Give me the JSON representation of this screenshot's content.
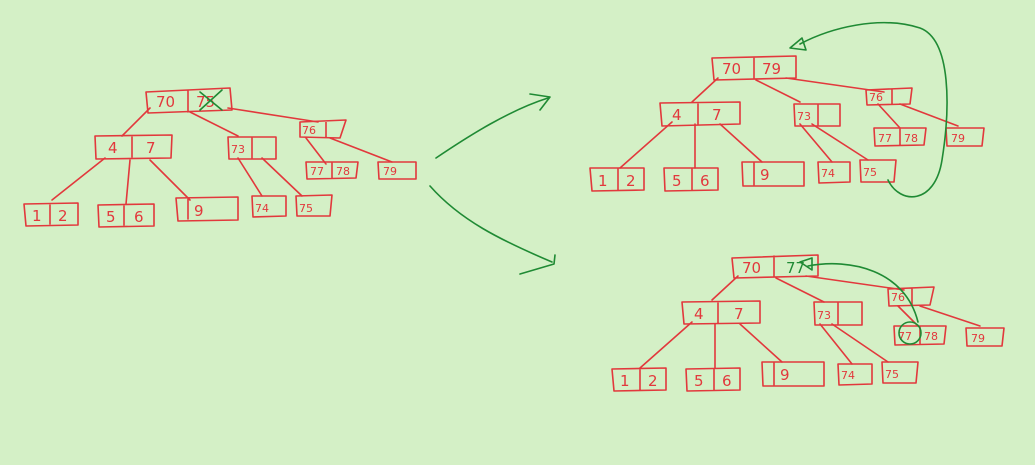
{
  "colors": {
    "background": "#d4f0c6",
    "ink_red": "#e2383c",
    "ink_green": "#1f8a34"
  },
  "trees": {
    "left": {
      "root": [
        "70",
        "75"
      ],
      "level1": [
        [
          "4",
          "7"
        ],
        [
          "73"
        ],
        [
          "76"
        ]
      ],
      "level2": [
        [
          "1",
          "2"
        ],
        [
          "5",
          "6"
        ],
        [
          "9"
        ],
        [
          "74"
        ],
        [
          "75"
        ],
        [
          "77",
          "78"
        ],
        [
          "79"
        ]
      ]
    },
    "top_right": {
      "root": [
        "70",
        "79"
      ],
      "level1": [
        [
          "4",
          "7"
        ],
        [
          "73"
        ],
        [
          "76"
        ]
      ],
      "level2": [
        [
          "1",
          "2"
        ],
        [
          "5",
          "6"
        ],
        [
          "9"
        ],
        [
          "74"
        ],
        [
          "75"
        ],
        [
          "77",
          "78"
        ],
        [
          "79"
        ]
      ]
    },
    "bottom_right": {
      "root": [
        "70",
        "77"
      ],
      "level1": [
        [
          "4",
          "7"
        ],
        [
          "73"
        ],
        [
          "76"
        ]
      ],
      "level2": [
        [
          "1",
          "2"
        ],
        [
          "5",
          "6"
        ],
        [
          "9"
        ],
        [
          "74"
        ],
        [
          "75"
        ],
        [
          "77",
          "78"
        ],
        [
          "79"
        ]
      ]
    }
  }
}
